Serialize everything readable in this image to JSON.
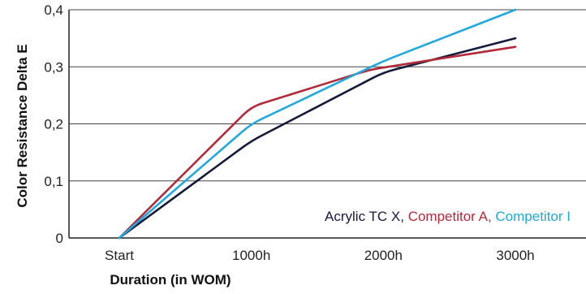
{
  "chart_data": {
    "type": "line",
    "categories": [
      "Start",
      "1000h",
      "2000h",
      "3000h"
    ],
    "x": [
      0,
      1000,
      1900,
      2000,
      3000
    ],
    "xlabel": "Duration (in WOM)",
    "ylabel": "Color Resistance Delta E",
    "ylim": [
      0,
      0.4
    ],
    "yticks": [
      "0",
      "0,1",
      "0,2",
      "0,3",
      "0,4"
    ],
    "ytick_values": [
      0,
      0.1,
      0.2,
      0.3,
      0.4
    ],
    "grid": true,
    "legend_position": "bottom-right",
    "series": [
      {
        "name": "Acrylic TC X",
        "color": "#141a3c",
        "x": [
          0,
          1000,
          2000,
          3000
        ],
        "values": [
          0,
          0.17,
          0.29,
          0.35
        ]
      },
      {
        "name": "Competitor A",
        "color": "#b32a3a",
        "x": [
          0,
          1000,
          1900,
          3000
        ],
        "values": [
          0,
          0.23,
          0.295,
          0.335
        ]
      },
      {
        "name": "Competitor I",
        "color": "#1fa9dd",
        "x": [
          0,
          1000,
          2000,
          3000
        ],
        "values": [
          0,
          0.2,
          0.31,
          0.4
        ]
      }
    ],
    "legend_separator": ", "
  }
}
